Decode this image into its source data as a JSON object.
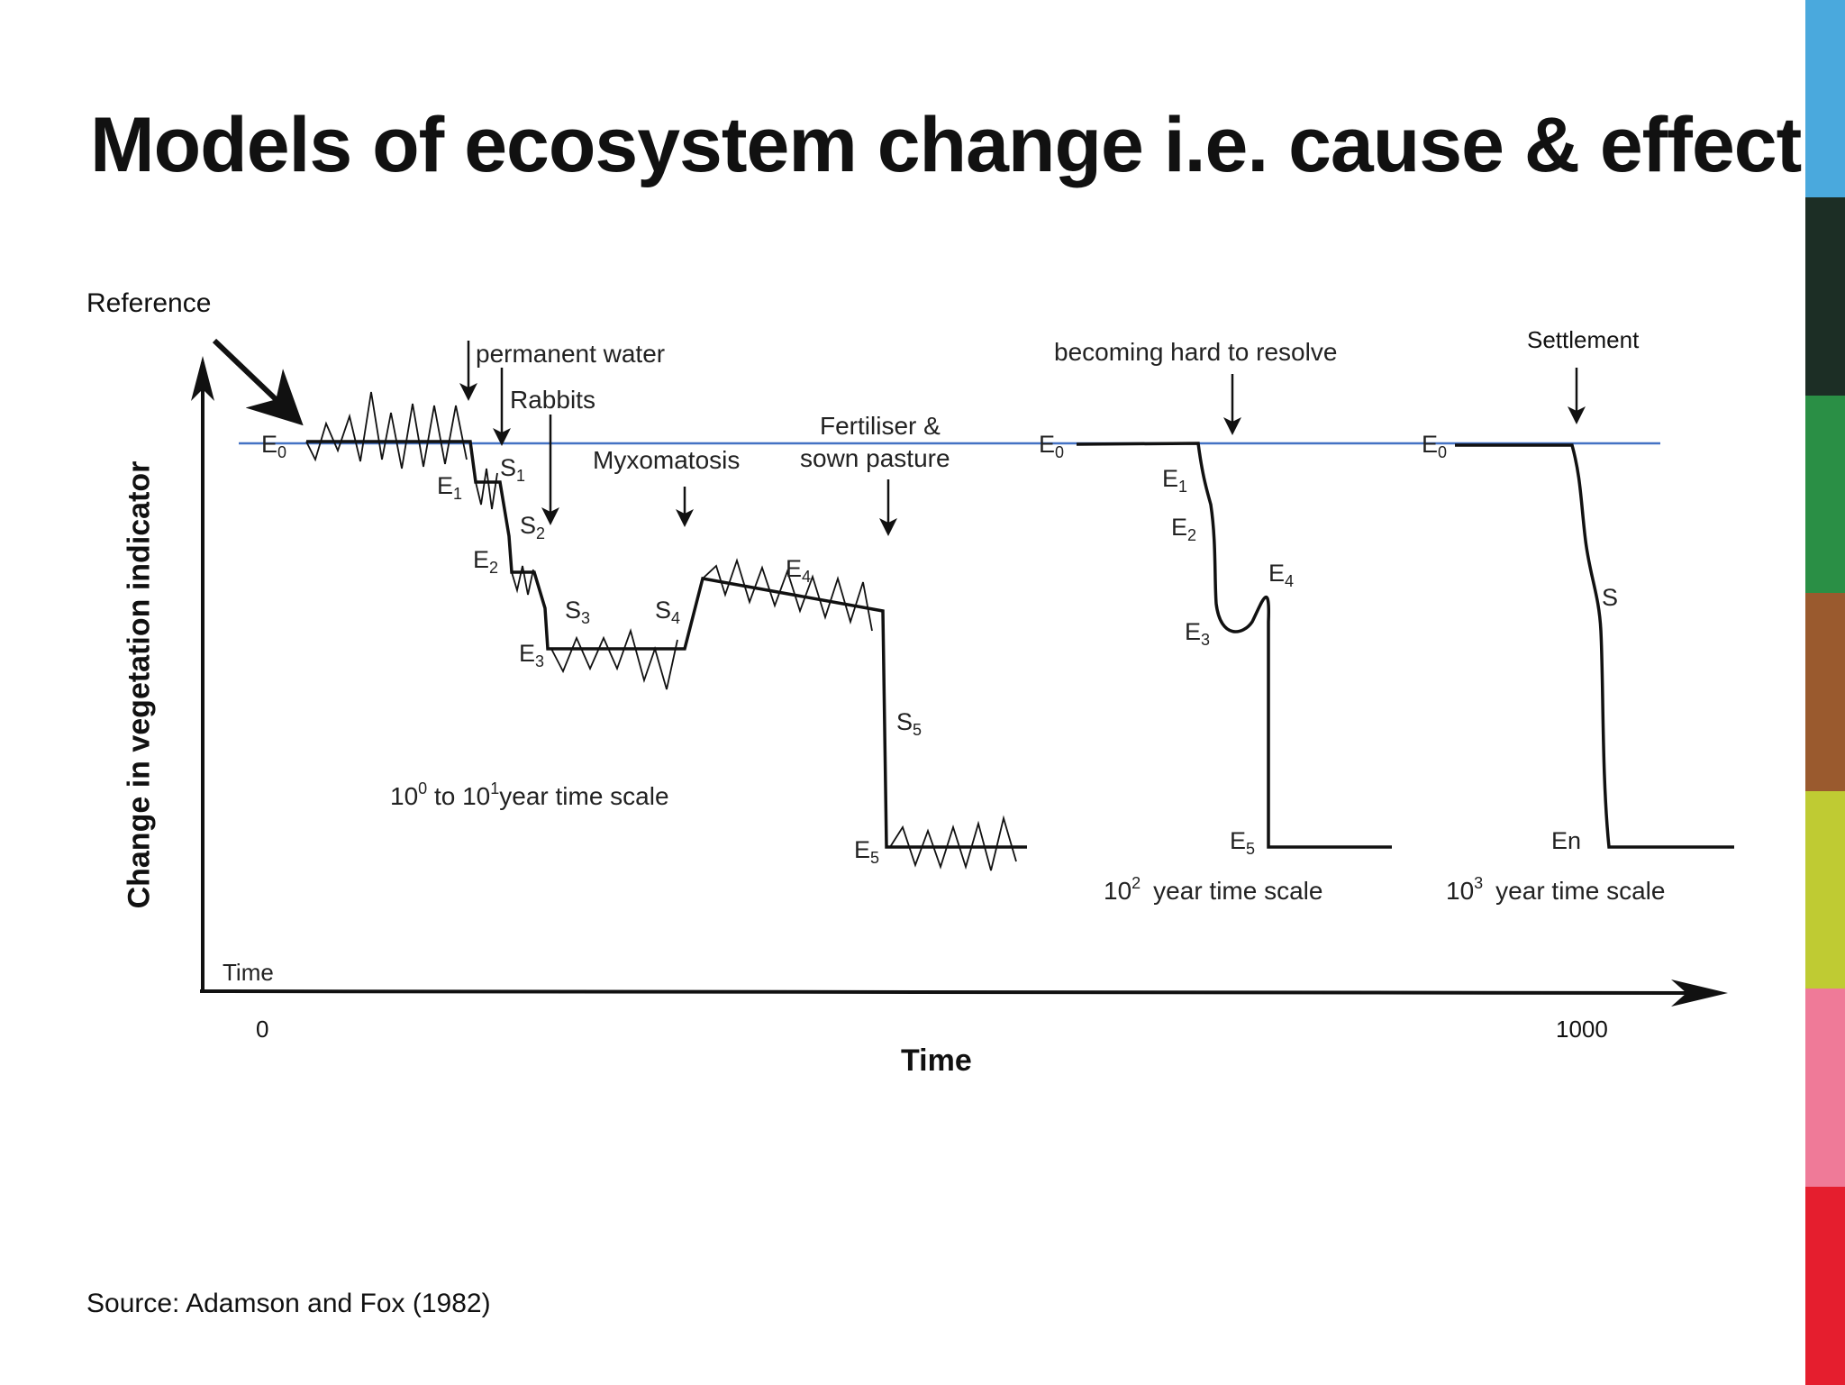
{
  "slide": {
    "title": "Models of ecosystem change i.e. cause  & effect",
    "reference_label": "Reference",
    "settlement_label": "Settlement",
    "y_axis_label": "Change in vegetation indicator",
    "x_axis_label": "Time",
    "x_tick_start": "0",
    "x_tick_end": "1000",
    "source": "Source: Adamson and Fox  (1982)",
    "stripe_colors": [
      "#4aa9dd",
      "#1c2e25",
      "#2a8f45",
      "#9a5a2e",
      "#bfcb33",
      "#ef7a98",
      "#e51e2e"
    ]
  },
  "figure": {
    "inner_time_label": "Time",
    "events": {
      "permanent_water": "permanent water",
      "rabbits": "Rabbits",
      "myxomatosis": "Myxomatosis",
      "fertiliser_line1": "Fertiliser &",
      "fertiliser_line2": "sown pasture",
      "hard_to_resolve": "becoming hard to resolve"
    },
    "scales": {
      "scale_1_a": "10",
      "scale_1_exp_a": "0",
      "scale_1_b": " to 10",
      "scale_1_exp_b": "1",
      "scale_1_c": "year time scale",
      "scale_2_a": "10",
      "scale_2_exp": "2",
      "scale_2_b": "year time scale",
      "scale_3_a": "10",
      "scale_3_exp": "3",
      "scale_3_b": "year time scale"
    },
    "state_labels": {
      "E": "E",
      "S": "S",
      "En": "En",
      "sub0": "0",
      "sub1": "1",
      "sub2": "2",
      "sub3": "3",
      "sub4": "4",
      "sub5": "5"
    }
  }
}
